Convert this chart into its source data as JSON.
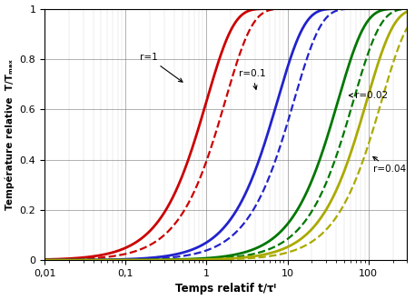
{
  "xlabel": "Temps relatif t/τᴵ",
  "ylabel": "Température relative  T/Tₘₐₓ",
  "xmin": 0.01,
  "xmax": 300,
  "ymin": 0,
  "ymax": 1.0,
  "curves": [
    {
      "tau_s": 1.0,
      "tau_d": 1.6,
      "color": "#cc0000",
      "label": "r=1",
      "lw_s": 2.2,
      "lw_d": 1.8
    },
    {
      "tau_s": 7.0,
      "tau_d": 11.0,
      "color": "#cc0000",
      "label": "r=0.1",
      "lw_s": 1.8,
      "lw_d": 1.5
    },
    {
      "tau_s": 9.0,
      "tau_d": 13.0,
      "color": "#1111cc",
      "label": null,
      "lw_s": 2.2,
      "lw_d": 1.8
    },
    {
      "tau_s": 40.0,
      "tau_d": 58.0,
      "color": "#007700",
      "label": "r=0.02",
      "lw_s": 2.2,
      "lw_d": 1.8
    },
    {
      "tau_s": 90.0,
      "tau_d": 130.0,
      "color": "#aaaa00",
      "label": "r=0.04",
      "lw_s": 2.2,
      "lw_d": 1.8
    }
  ],
  "yticks": [
    0,
    0.2,
    0.4,
    0.6,
    0.8,
    1.0
  ],
  "xtick_labels": [
    "0,01",
    "0,1",
    "1",
    "10",
    "100"
  ],
  "xtick_values": [
    0.01,
    0.1,
    1,
    10,
    100
  ],
  "background_color": "#ffffff",
  "grid_major_color": "#777777",
  "grid_minor_color": "#aaaaaa"
}
